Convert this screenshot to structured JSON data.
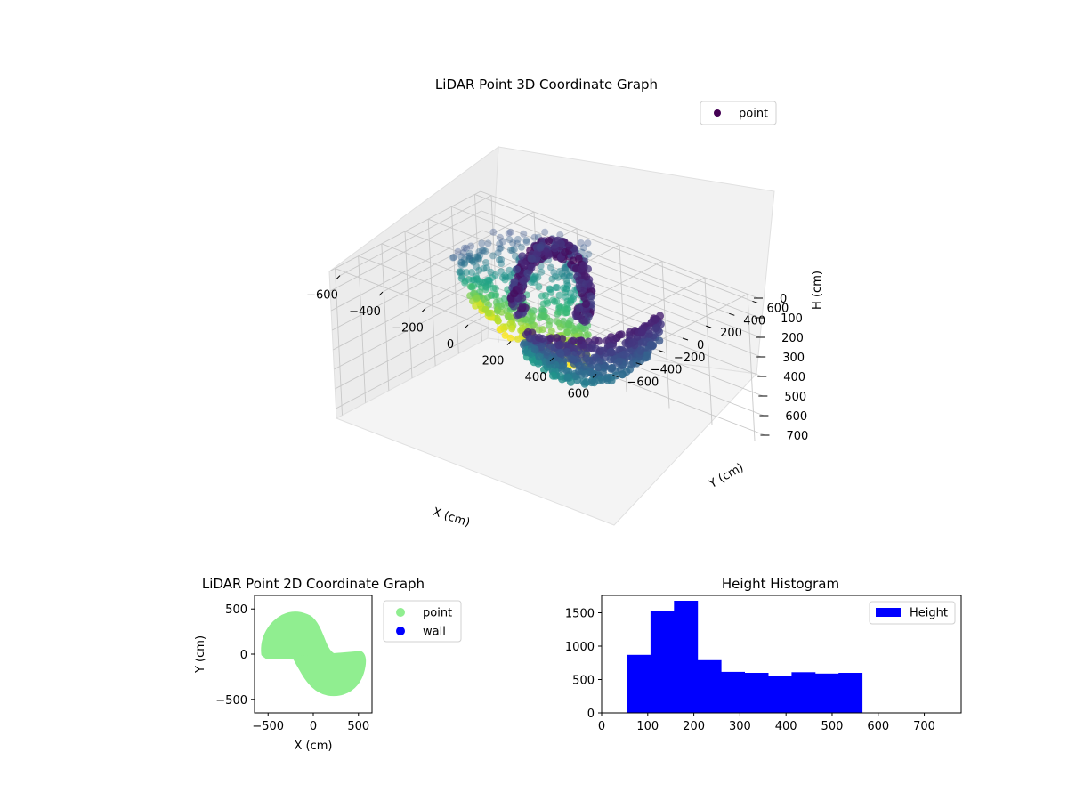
{
  "chart_data": [
    {
      "type": "scatter3d",
      "title": "LiDAR Point 3D Coordinate Graph",
      "xlabel": "X (cm)",
      "ylabel": "Y (cm)",
      "zlabel": "H (cm)",
      "xticks": [
        -600,
        -400,
        -200,
        0,
        200,
        400,
        600
      ],
      "yticks": [
        -600,
        -400,
        -200,
        0,
        200,
        400,
        600
      ],
      "zticks": [
        0,
        100,
        200,
        300,
        400,
        500,
        600,
        700
      ],
      "xlim": [
        -650,
        650
      ],
      "ylim": [
        -650,
        650
      ],
      "zlim": [
        0,
        750
      ],
      "z_axis_inverted": true,
      "colormap": "viridis",
      "grid": true,
      "legend": {
        "position": "top-right",
        "entries": [
          {
            "label": "point",
            "color": "#440154"
          }
        ]
      }
    },
    {
      "type": "scatter",
      "title": "LiDAR Point 2D Coordinate Graph",
      "xlabel": "X (cm)",
      "ylabel": "Y (cm)",
      "xticks": [
        -500,
        0,
        500
      ],
      "yticks": [
        -500,
        0,
        500
      ],
      "xlim": [
        -650,
        650
      ],
      "ylim": [
        -650,
        650
      ],
      "legend": {
        "position": "outside-right",
        "entries": [
          {
            "label": "point",
            "color": "#90ee90"
          },
          {
            "label": "wall",
            "color": "#0000ff"
          }
        ]
      }
    },
    {
      "type": "bar",
      "title": "Height Histogram",
      "xticks": [
        0,
        100,
        200,
        300,
        400,
        500,
        600,
        700
      ],
      "yticks": [
        0,
        500,
        1000,
        1500
      ],
      "xlim": [
        0,
        780
      ],
      "ylim": [
        0,
        1760
      ],
      "bin_width": 51,
      "bins": [
        {
          "x0": 55,
          "value": 870
        },
        {
          "x0": 106,
          "value": 1520
        },
        {
          "x0": 157,
          "value": 1680
        },
        {
          "x0": 208,
          "value": 790
        },
        {
          "x0": 259,
          "value": 615
        },
        {
          "x0": 310,
          "value": 600
        },
        {
          "x0": 361,
          "value": 550
        },
        {
          "x0": 412,
          "value": 610
        },
        {
          "x0": 463,
          "value": 590
        },
        {
          "x0": 514,
          "value": 600
        }
      ],
      "bar_color": "#0000ff",
      "legend": {
        "position": "top-right",
        "entries": [
          {
            "label": "Height",
            "color": "#0000ff"
          }
        ]
      }
    }
  ]
}
